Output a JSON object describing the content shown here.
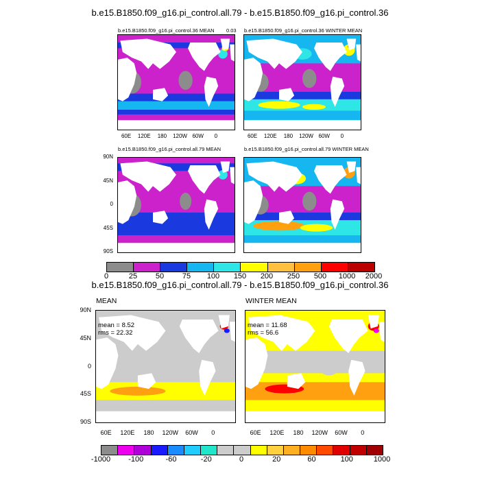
{
  "figure": {
    "top_title": "b.e15.B1850.f09_g16.pi_control.all.79 - b.e15.B1850.f09_g16.pi_control.36",
    "diff_title": "b.e15.B1850.f09_g16.pi_control.all.79 - b.e15.B1850.f09_g16.pi_control.36"
  },
  "panels": {
    "p1": {
      "title": "b.e15.B1850.f09_g16.pi_control.36 MEAN",
      "corner": "0.03"
    },
    "p2": {
      "title": "b.e15.B1850.f09_g16.pi_control.36 WINTER MEAN"
    },
    "p3": {
      "title": "b.e15.B1850.f09_g16.pi_control.all.79 MEAN"
    },
    "p4": {
      "title": "b.e15.B1850.f09_g16.pi_control.all.79 WINTER MEAN"
    },
    "p5": {
      "title": "MEAN",
      "mean": "mean = 8.52",
      "rms": "rms = 22.32"
    },
    "p6": {
      "title": "WINTER MEAN",
      "mean": "mean = 11.68",
      "rms": "rms = 56.6"
    }
  },
  "axes": {
    "lon_labels": [
      "60E",
      "120E",
      "180",
      "120W",
      "60W",
      "0"
    ],
    "lat_labels": [
      "90N",
      "45N",
      "0",
      "45S",
      "90S"
    ]
  },
  "colorbar1": {
    "labels": [
      "0",
      "25",
      "50",
      "75",
      "100",
      "150",
      "200",
      "250",
      "500",
      "1000",
      "2000"
    ],
    "colors": [
      "#8c8c8c",
      "#cc22cc",
      "#1a3ae0",
      "#16b6f0",
      "#2ee6e6",
      "#ffff00",
      "#ffc040",
      "#ffa010",
      "#ff0000",
      "#bb0000"
    ]
  },
  "colorbar2": {
    "labels": [
      "-1000",
      "-100",
      "-60",
      "-20",
      "0",
      "20",
      "60",
      "100",
      "1000"
    ],
    "colors": [
      "#8c8c8c",
      "#ee00ee",
      "#b000d8",
      "#1a1aff",
      "#1a8cff",
      "#22ccff",
      "#22e6cc",
      "#cccccc",
      "#cccccc",
      "#ffff00",
      "#ffd040",
      "#ffb020",
      "#ff8c00",
      "#ff4a00",
      "#e00000",
      "#c00000",
      "#a00000"
    ]
  },
  "palette": {
    "land": "#ffffff",
    "gray": "#8c8c8c",
    "magenta": "#cc22cc",
    "blue": "#1a3ae0",
    "sky": "#16b6f0",
    "cyan": "#2ee6e6",
    "yellow": "#ffff00",
    "orange": "#ffa010",
    "red": "#ff0000",
    "diff_gray": "#cccccc"
  }
}
